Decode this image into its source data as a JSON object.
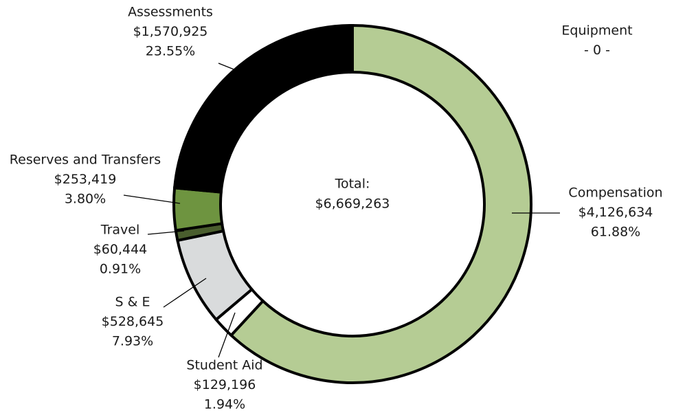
{
  "chart_data": {
    "type": "donut",
    "categories": [
      "Compensation",
      "Student Aid",
      "S & E",
      "Travel",
      "Reserves and Transfers",
      "Assessments",
      "Equipment"
    ],
    "values": [
      4126634,
      129196,
      528645,
      60444,
      253419,
      1570925,
      0
    ],
    "value_labels": [
      "$4,126,634",
      "$129,196",
      "$528,645",
      "$60,444",
      "$253,419",
      "$1,570,925",
      "- 0 -"
    ],
    "percents": [
      61.88,
      1.94,
      7.93,
      0.91,
      3.8,
      23.55,
      null
    ],
    "percent_labels": [
      "61.88%",
      "1.94%",
      "7.93%",
      "0.91%",
      "3.80%",
      "23.55%",
      null
    ],
    "colors": [
      "#b5cc94",
      "#ffffff",
      "#d9dbdc",
      "#4a5e2e",
      "#6e9440",
      "#000000",
      "#888888"
    ],
    "center_label": "Total:",
    "total": 6669263,
    "total_label": "$6,669,263"
  }
}
